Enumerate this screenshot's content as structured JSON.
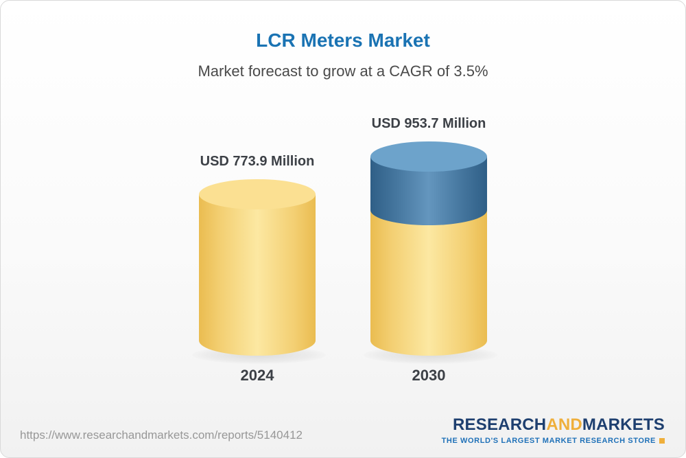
{
  "header": {
    "title": "LCR Meters Market",
    "subtitle": "Market forecast to grow at a CAGR of 3.5%"
  },
  "chart_data": {
    "type": "bar",
    "bar_style": "3d-cylinder",
    "title": "LCR Meters Market",
    "subtitle": "Market forecast to grow at a CAGR of 3.5%",
    "categories": [
      "2024",
      "2030"
    ],
    "series": [
      {
        "name": "Market value (USD Million)",
        "values": [
          773.9,
          953.7
        ]
      }
    ],
    "value_labels": [
      "USD 773.9 Million",
      "USD 953.7 Million"
    ],
    "unit": "USD Million",
    "cagr": "3.5%",
    "legend": "none",
    "grid": false,
    "colors": {
      "bar_base": "#f6cf68",
      "bar_growth_segment": "#44749e",
      "title": "#1a73b3",
      "label_text": "#3c4046"
    }
  },
  "footer": {
    "url": "https://www.researchandmarkets.com/reports/5140412",
    "logo": {
      "part1": "RESEARCH",
      "part2": "AND",
      "part3": "MARKETS",
      "tagline": "THE WORLD'S LARGEST MARKET RESEARCH STORE"
    }
  }
}
